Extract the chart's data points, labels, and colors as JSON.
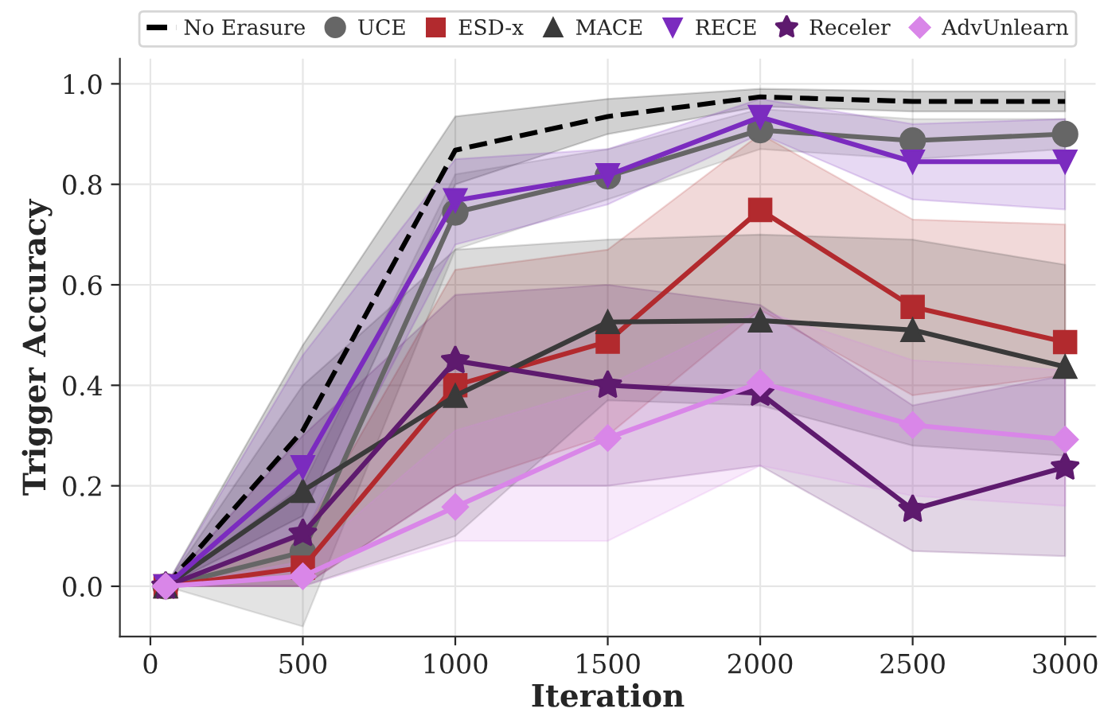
{
  "chart_data": {
    "type": "line",
    "xlabel": "Iteration",
    "ylabel": "Trigger Accuracy",
    "x": [
      50,
      500,
      1000,
      1500,
      2000,
      2500,
      3000
    ],
    "xlim": [
      -100,
      3100
    ],
    "xticks": [
      0,
      500,
      1000,
      1500,
      2000,
      2500,
      3000
    ],
    "ylim": [
      -0.1,
      1.05
    ],
    "yticks": [
      {
        "value": 0,
        "label": "0.0"
      },
      {
        "value": 0.2,
        "label": "0.2"
      },
      {
        "value": 0.4,
        "label": "0.4"
      },
      {
        "value": 0.6,
        "label": "0.6"
      },
      {
        "value": 0.8,
        "label": "0.8"
      },
      {
        "value": 1.0,
        "label": "1.0"
      }
    ],
    "grid": true,
    "legend": "top",
    "series": [
      {
        "name": "No Erasure",
        "color": "#000000",
        "line_style": "dashed",
        "marker": "none",
        "values": [
          0,
          0.31,
          0.868,
          0.935,
          0.974,
          0.965,
          0.965
        ],
        "lower": [
          0,
          0.14,
          0.8,
          0.9,
          0.955,
          0.945,
          0.945
        ],
        "upper": [
          0,
          0.48,
          0.935,
          0.97,
          0.99,
          0.985,
          0.985
        ]
      },
      {
        "name": "UCE",
        "color": "#666666",
        "line_style": "solid",
        "marker": "circle",
        "values": [
          0,
          0.068,
          0.744,
          0.816,
          0.908,
          0.887,
          0.9
        ],
        "lower": [
          0,
          -0.08,
          0.67,
          0.77,
          0.87,
          0.85,
          0.87
        ],
        "upper": [
          0,
          0.2,
          0.82,
          0.87,
          0.95,
          0.93,
          0.93
        ]
      },
      {
        "name": "ESD-x",
        "color": "#b22a2e",
        "line_style": "solid",
        "marker": "square",
        "values": [
          0,
          0.037,
          0.4,
          0.487,
          0.749,
          0.556,
          0.486
        ],
        "lower": [
          0,
          0.0,
          0.2,
          0.3,
          0.55,
          0.38,
          0.42
        ],
        "upper": [
          0,
          0.1,
          0.63,
          0.67,
          0.9,
          0.73,
          0.72
        ]
      },
      {
        "name": "MACE",
        "color": "#3a3a3a",
        "line_style": "solid",
        "marker": "triangle",
        "values": [
          0,
          0.19,
          0.379,
          0.526,
          0.529,
          0.51,
          0.437
        ],
        "lower": [
          0,
          0.0,
          0.1,
          0.37,
          0.36,
          0.28,
          0.26
        ],
        "upper": [
          0,
          0.4,
          0.67,
          0.69,
          0.7,
          0.69,
          0.64
        ]
      },
      {
        "name": "RECE",
        "color": "#7b2bbf",
        "line_style": "solid",
        "marker": "triangle_down",
        "values": [
          0,
          0.237,
          0.768,
          0.818,
          0.934,
          0.845,
          0.845
        ],
        "lower": [
          0,
          0.1,
          0.68,
          0.76,
          0.9,
          0.77,
          0.75
        ],
        "upper": [
          0,
          0.46,
          0.85,
          0.87,
          0.97,
          0.92,
          0.93
        ]
      },
      {
        "name": "Receler",
        "color": "#5e1a6e",
        "line_style": "solid",
        "marker": "star",
        "values": [
          0,
          0.105,
          0.449,
          0.4,
          0.384,
          0.153,
          0.237
        ],
        "lower": [
          0,
          0.0,
          0.2,
          0.2,
          0.24,
          0.07,
          0.06
        ],
        "upper": [
          0,
          0.3,
          0.58,
          0.6,
          0.56,
          0.36,
          0.42
        ]
      },
      {
        "name": "AdvUnlearn",
        "color": "#d986e8",
        "line_style": "solid",
        "marker": "diamond",
        "values": [
          0,
          0.02,
          0.158,
          0.295,
          0.405,
          0.321,
          0.292
        ],
        "lower": [
          0,
          0.0,
          0.09,
          0.09,
          0.24,
          0.18,
          0.16
        ],
        "upper": [
          0,
          0.05,
          0.31,
          0.4,
          0.55,
          0.45,
          0.43
        ]
      }
    ]
  }
}
